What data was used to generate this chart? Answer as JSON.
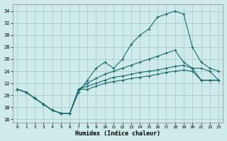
{
  "xlabel": "Humidex (Indice chaleur)",
  "background_color": "#ceeaea",
  "grid_color": "#aacccc",
  "line_color": "#1a6b6b",
  "xlim": [
    -0.5,
    23.5
  ],
  "ylim": [
    15.5,
    35.2
  ],
  "xticks": [
    0,
    1,
    2,
    3,
    4,
    5,
    6,
    7,
    8,
    9,
    10,
    11,
    12,
    13,
    14,
    15,
    16,
    17,
    18,
    19,
    20,
    21,
    22,
    23
  ],
  "yticks": [
    16,
    18,
    20,
    22,
    24,
    26,
    28,
    30,
    32,
    34
  ],
  "line1_x": [
    0,
    1,
    2,
    3,
    4,
    5,
    6,
    7,
    8,
    9,
    10,
    11,
    12,
    13,
    14,
    15,
    16,
    17,
    18,
    19,
    20,
    21,
    22,
    23
  ],
  "line1_y": [
    21.0,
    20.5,
    19.5,
    18.5,
    17.5,
    17.0,
    17.0,
    20.5,
    22.5,
    24.5,
    25.5,
    24.5,
    26.0,
    28.5,
    30.0,
    31.0,
    33.0,
    33.5,
    34.0,
    33.5,
    28.0,
    25.5,
    24.5,
    24.0
  ],
  "line2_x": [
    0,
    1,
    2,
    3,
    4,
    5,
    6,
    7,
    8,
    9,
    10,
    11,
    12,
    13,
    14,
    15,
    16,
    17,
    18,
    19,
    20,
    21,
    22,
    23
  ],
  "line2_y": [
    21.0,
    20.5,
    19.5,
    18.5,
    17.5,
    17.0,
    17.0,
    21.0,
    22.0,
    22.8,
    23.5,
    24.0,
    24.5,
    25.0,
    25.5,
    26.0,
    26.5,
    27.0,
    27.5,
    25.5,
    24.5,
    24.5,
    24.0,
    22.5
  ],
  "line3_x": [
    0,
    1,
    2,
    3,
    4,
    5,
    6,
    7,
    8,
    9,
    10,
    11,
    12,
    13,
    14,
    15,
    16,
    17,
    18,
    19,
    20,
    21,
    22,
    23
  ],
  "line3_y": [
    21.0,
    20.5,
    19.5,
    18.5,
    17.5,
    17.0,
    17.0,
    21.0,
    21.5,
    22.0,
    22.5,
    23.0,
    23.2,
    23.5,
    23.8,
    24.0,
    24.2,
    24.5,
    24.8,
    25.0,
    24.5,
    22.5,
    22.5,
    22.5
  ],
  "line4_x": [
    0,
    1,
    2,
    3,
    4,
    5,
    6,
    7,
    8,
    9,
    10,
    11,
    12,
    13,
    14,
    15,
    16,
    17,
    18,
    19,
    20,
    21,
    22,
    23
  ],
  "line4_y": [
    21.0,
    20.5,
    19.5,
    18.5,
    17.5,
    17.0,
    17.0,
    21.0,
    21.0,
    21.5,
    22.0,
    22.3,
    22.5,
    22.8,
    23.0,
    23.2,
    23.5,
    23.8,
    24.0,
    24.2,
    24.0,
    22.5,
    22.5,
    22.5
  ]
}
